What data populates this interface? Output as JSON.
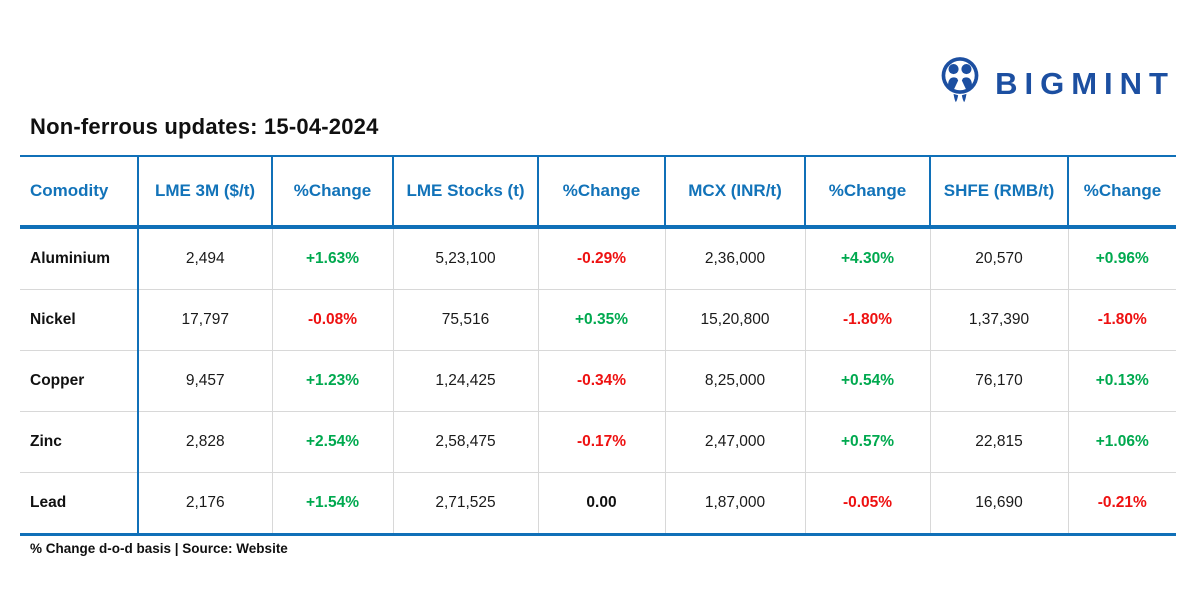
{
  "logo": {
    "brand": "BIGMINT",
    "color": "#1C4FA1"
  },
  "title": "Non-ferrous updates: 15-04-2024",
  "footer": "% Change d-o-d basis | Source: Website",
  "colors": {
    "header_blue": "#1273B9",
    "border_blue": "#1070B8",
    "positive_green": "#00A94F",
    "negative_red": "#EE1111",
    "logo_navy": "#1C4FA1"
  },
  "chart_data": {
    "type": "table",
    "columns": [
      "Comodity",
      "LME 3M ($/t)",
      "%Change",
      "LME Stocks (t)",
      "%Change",
      "MCX (INR/t)",
      "%Change",
      "SHFE (RMB/t)",
      "%Change"
    ],
    "rows": [
      [
        "Aluminium",
        "2,494",
        "+1.63%",
        "5,23,100",
        "-0.29%",
        "2,36,000",
        "+4.30%",
        "20,570",
        "+0.96%"
      ],
      [
        "Nickel",
        "17,797",
        "-0.08%",
        "75,516",
        "+0.35%",
        "15,20,800",
        "-1.80%",
        "1,37,390",
        "-1.80%"
      ],
      [
        "Copper",
        "9,457",
        "+1.23%",
        "1,24,425",
        "-0.34%",
        "8,25,000",
        "+0.54%",
        "76,170",
        "+0.13%"
      ],
      [
        "Zinc",
        "2,828",
        "+2.54%",
        "2,58,475",
        "-0.17%",
        "2,47,000",
        "+0.57%",
        "22,815",
        "+1.06%"
      ],
      [
        "Lead",
        "2,176",
        "+1.54%",
        "2,71,525",
        "0.00",
        "1,87,000",
        "-0.05%",
        "16,690",
        "-0.21%"
      ]
    ]
  }
}
